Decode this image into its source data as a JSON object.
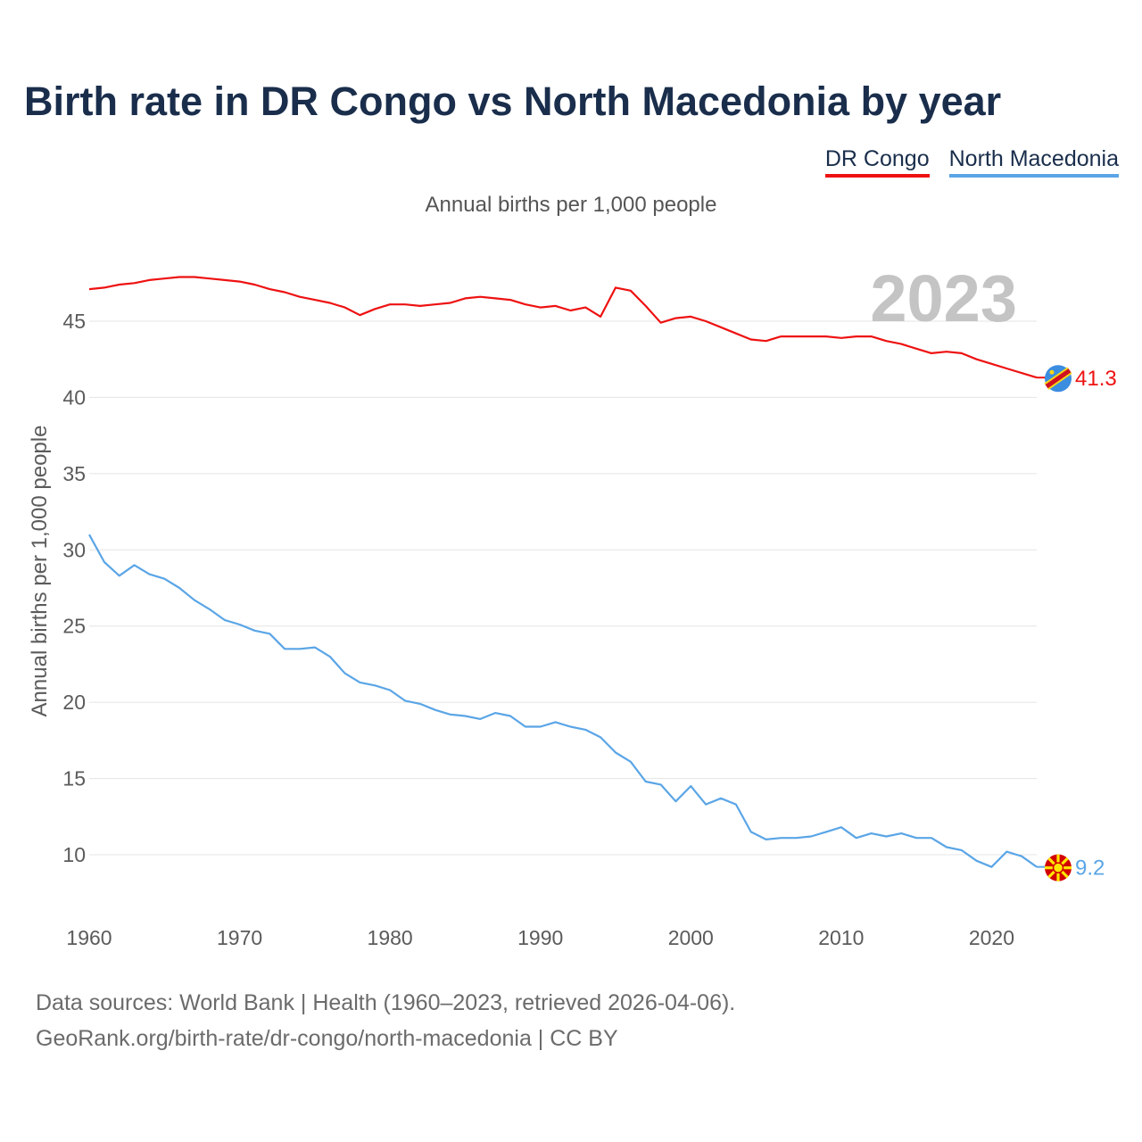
{
  "header": {
    "title": "Birth rate in DR Congo vs North Macedonia by year",
    "subtitle": "Annual births per 1,000 people"
  },
  "legend": [
    {
      "label": "DR Congo",
      "color": "#ee1111"
    },
    {
      "label": "North Macedonia",
      "color": "#5aa5e6"
    }
  ],
  "footer": {
    "line1": "Data sources: World Bank | Health (1960–2023, retrieved 2026-04-06).",
    "line2": "GeoRank.org/birth-rate/dr-congo/north-macedonia | CC BY"
  },
  "chart_data": {
    "type": "line",
    "title": "Birth rate in DR Congo vs North Macedonia by year",
    "ylabel": "Annual births per 1,000 people",
    "xlabel": "",
    "year_label": "2023",
    "xlim": [
      1960,
      2023
    ],
    "ylim": [
      7,
      49
    ],
    "xticks": [
      1960,
      1970,
      1980,
      1990,
      2000,
      2010,
      2020
    ],
    "yticks": [
      10,
      15,
      20,
      25,
      30,
      35,
      40,
      45
    ],
    "grid": true,
    "x": [
      1960,
      1961,
      1962,
      1963,
      1964,
      1965,
      1966,
      1967,
      1968,
      1969,
      1970,
      1971,
      1972,
      1973,
      1974,
      1975,
      1976,
      1977,
      1978,
      1979,
      1980,
      1981,
      1982,
      1983,
      1984,
      1985,
      1986,
      1987,
      1988,
      1989,
      1990,
      1991,
      1992,
      1993,
      1994,
      1995,
      1996,
      1997,
      1998,
      1999,
      2000,
      2001,
      2002,
      2003,
      2004,
      2005,
      2006,
      2007,
      2008,
      2009,
      2010,
      2011,
      2012,
      2013,
      2014,
      2015,
      2016,
      2017,
      2018,
      2019,
      2020,
      2021,
      2022,
      2023
    ],
    "series": [
      {
        "name": "DR Congo",
        "color": "#ee1111",
        "end_label": "41.3",
        "values": [
          47.1,
          47.2,
          47.4,
          47.5,
          47.7,
          47.8,
          47.9,
          47.9,
          47.8,
          47.7,
          47.6,
          47.4,
          47.1,
          46.9,
          46.6,
          46.4,
          46.2,
          45.9,
          45.4,
          45.8,
          46.1,
          46.1,
          46.0,
          46.1,
          46.2,
          46.5,
          46.6,
          46.5,
          46.4,
          46.1,
          45.9,
          46.0,
          45.7,
          45.9,
          45.3,
          47.2,
          47.0,
          46.0,
          44.9,
          45.2,
          45.3,
          45.0,
          44.6,
          44.2,
          43.8,
          43.7,
          44.0,
          44.0,
          44.0,
          44.0,
          43.9,
          44.0,
          44.0,
          43.7,
          43.5,
          43.2,
          42.9,
          43.0,
          42.9,
          42.5,
          42.2,
          41.9,
          41.6,
          41.3
        ]
      },
      {
        "name": "North Macedonia",
        "color": "#5aa5e6",
        "end_label": "9.2",
        "values": [
          31.0,
          29.2,
          28.3,
          29.0,
          28.4,
          28.1,
          27.5,
          26.7,
          26.1,
          25.4,
          25.1,
          24.7,
          24.5,
          23.5,
          23.5,
          23.6,
          23.0,
          21.9,
          21.3,
          21.1,
          20.8,
          20.1,
          19.9,
          19.5,
          19.2,
          19.1,
          18.9,
          19.3,
          19.1,
          18.4,
          18.4,
          18.7,
          18.4,
          18.2,
          17.7,
          16.7,
          16.1,
          14.8,
          14.6,
          13.5,
          14.5,
          13.3,
          13.7,
          13.3,
          11.5,
          11.0,
          11.1,
          11.1,
          11.2,
          11.5,
          11.8,
          11.1,
          11.4,
          11.2,
          11.4,
          11.1,
          11.1,
          10.5,
          10.3,
          9.6,
          9.2,
          10.2,
          9.9,
          9.2
        ]
      }
    ]
  }
}
